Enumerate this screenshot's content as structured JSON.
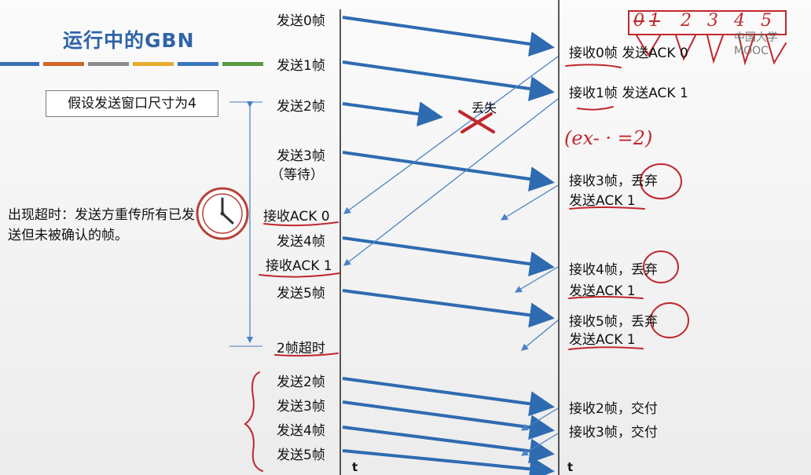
{
  "title": "运行中的GBN",
  "assumption": "假设发送窗口尺寸为4",
  "timeout_note": "出现超时：发送方重传所有已发送但未被确认的帧。",
  "lost_label": "丢失",
  "sender_events": [
    "发送0帧",
    "发送1帧",
    "发送2帧",
    "发送3帧",
    "（等待）",
    "接收ACK 0",
    "发送4帧",
    "接收ACK 1",
    "发送5帧",
    "2帧超时",
    "发送2帧",
    "发送3帧",
    "发送4帧",
    "发送5帧"
  ],
  "receiver_events": [
    "接收0帧 发送ACK 0",
    "接收1帧 发送ACK 1",
    "接收3帧，丢弃",
    "发送ACK 1",
    "接收4帧，丢弃",
    "发送ACK 1",
    "接收5帧，丢弃",
    "发送ACK 1",
    "接收2帧，交付",
    "接收3帧，交付"
  ],
  "time_axis_label": "t",
  "handwritten_note": "(ex- · =2)",
  "handwritten_window": [
    "0",
    "1",
    "2",
    "3",
    "4",
    "5"
  ],
  "watermark": "中国大学MOOC",
  "colors": {
    "title": "#2f64a8",
    "arrow": "#2e6bb0",
    "annotation": "#c0282e",
    "bar_colors": [
      "#3c6eb4",
      "#d1642a",
      "#8c8c8c",
      "#e2ad2b",
      "#3a76ba",
      "#5a9a3c"
    ]
  }
}
